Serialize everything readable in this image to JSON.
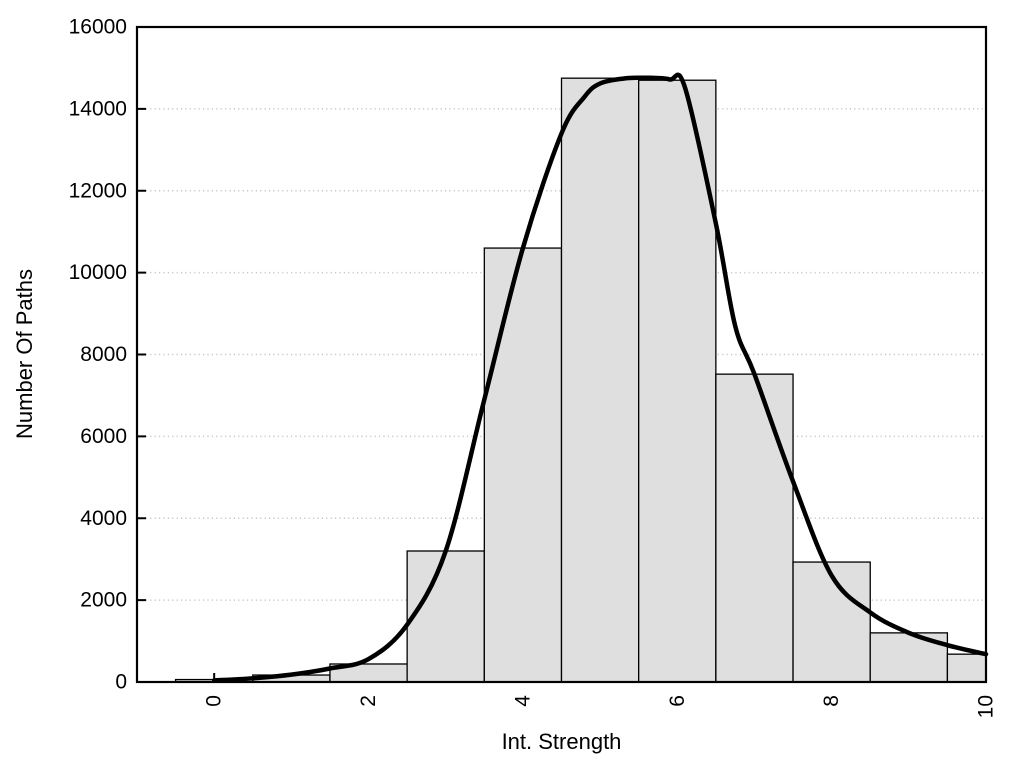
{
  "chart_data": {
    "type": "bar",
    "subtype": "histogram_with_smooth_fit_curve",
    "title": "",
    "xlabel": "Int. Strength",
    "ylabel": "Number Of Paths",
    "xlim": [
      -1,
      10
    ],
    "ylim": [
      0,
      16000
    ],
    "x_tick_positions": [
      0,
      1,
      2,
      3,
      4,
      5,
      6,
      7,
      8,
      9,
      10
    ],
    "x_labeled_tick_positions": [
      0,
      2,
      4,
      6,
      8,
      10
    ],
    "x_tick_labels": [
      "0",
      "2",
      "4",
      "6",
      "8",
      "10"
    ],
    "x_tick_label_rotation_deg": -90,
    "y_tick_positions": [
      0,
      2000,
      4000,
      6000,
      8000,
      10000,
      12000,
      14000,
      16000
    ],
    "y_tick_labels": [
      "0",
      "2000",
      "4000",
      "6000",
      "8000",
      "10000",
      "12000",
      "14000",
      "16000"
    ],
    "grid": {
      "horizontal_dotted_at": [
        2000,
        4000,
        6000,
        8000,
        10000,
        12000,
        14000
      ],
      "vertical": false
    },
    "legend": null,
    "bars": {
      "bin_width": 1,
      "centers": [
        0,
        1,
        2,
        3,
        4,
        5,
        6,
        7,
        8,
        9,
        10
      ],
      "heights": [
        60,
        170,
        440,
        3200,
        10600,
        14750,
        14700,
        7520,
        2930,
        1200,
        680
      ],
      "clip_right_at_x": 10
    },
    "curve": {
      "name": "smooth-fit-curve",
      "points": [
        [
          0,
          40
        ],
        [
          0.5,
          90
        ],
        [
          1,
          180
        ],
        [
          1.5,
          330
        ],
        [
          2,
          560
        ],
        [
          2.5,
          1400
        ],
        [
          3,
          3200
        ],
        [
          3.5,
          6900
        ],
        [
          4,
          10600
        ],
        [
          4.5,
          13400
        ],
        [
          4.8,
          14300
        ],
        [
          5,
          14620
        ],
        [
          5.3,
          14740
        ],
        [
          5.6,
          14760
        ],
        [
          5.9,
          14720
        ],
        [
          6.1,
          14520
        ],
        [
          6.5,
          11200
        ],
        [
          6.75,
          8700
        ],
        [
          7,
          7520
        ],
        [
          7.5,
          4900
        ],
        [
          8,
          2600
        ],
        [
          8.5,
          1700
        ],
        [
          9,
          1200
        ],
        [
          9.5,
          900
        ],
        [
          10,
          680
        ]
      ]
    },
    "colors": {
      "background": "#ffffff",
      "frame": "#000000",
      "bar_fill": "#dfdfdf",
      "bar_stroke": "#000000",
      "curve": "#000000",
      "grid": "#c6c6c6",
      "text": "#000000"
    }
  }
}
